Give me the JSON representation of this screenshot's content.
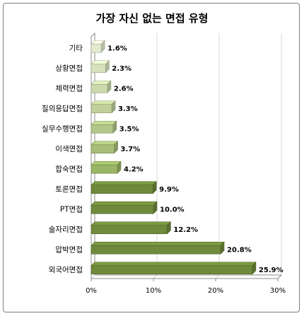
{
  "chart_data": {
    "type": "bar",
    "orientation": "horizontal",
    "title": "가장 자신 없는 면접 유형",
    "categories": [
      "기타",
      "상황면접",
      "체력면접",
      "질의응답면접",
      "실무수행면접",
      "이색면접",
      "합숙면접",
      "토론면접",
      "PT면접",
      "술자리면접",
      "압박면접",
      "외국어면접"
    ],
    "values": [
      1.6,
      2.3,
      2.6,
      3.3,
      3.5,
      3.7,
      4.2,
      9.9,
      10.0,
      12.2,
      20.8,
      25.9
    ],
    "value_labels": [
      "1.6%",
      "2.3%",
      "2.6%",
      "3.3%",
      "3.5%",
      "3.7%",
      "4.2%",
      "9.9%",
      "10.0%",
      "12.2%",
      "20.8%",
      "25.9%"
    ],
    "xlim": [
      0,
      30
    ],
    "xticks": [
      0,
      10,
      20,
      30
    ],
    "xtick_labels": [
      "0%",
      "10%",
      "20%",
      "30%"
    ],
    "grid": true,
    "legend": "none",
    "colors": {
      "light_start": "#e3ebcf",
      "light_end": "#9ab565",
      "dark": "#6f8a3b",
      "grid": "#d9d9d9",
      "axis": "#8c8c8c"
    }
  }
}
